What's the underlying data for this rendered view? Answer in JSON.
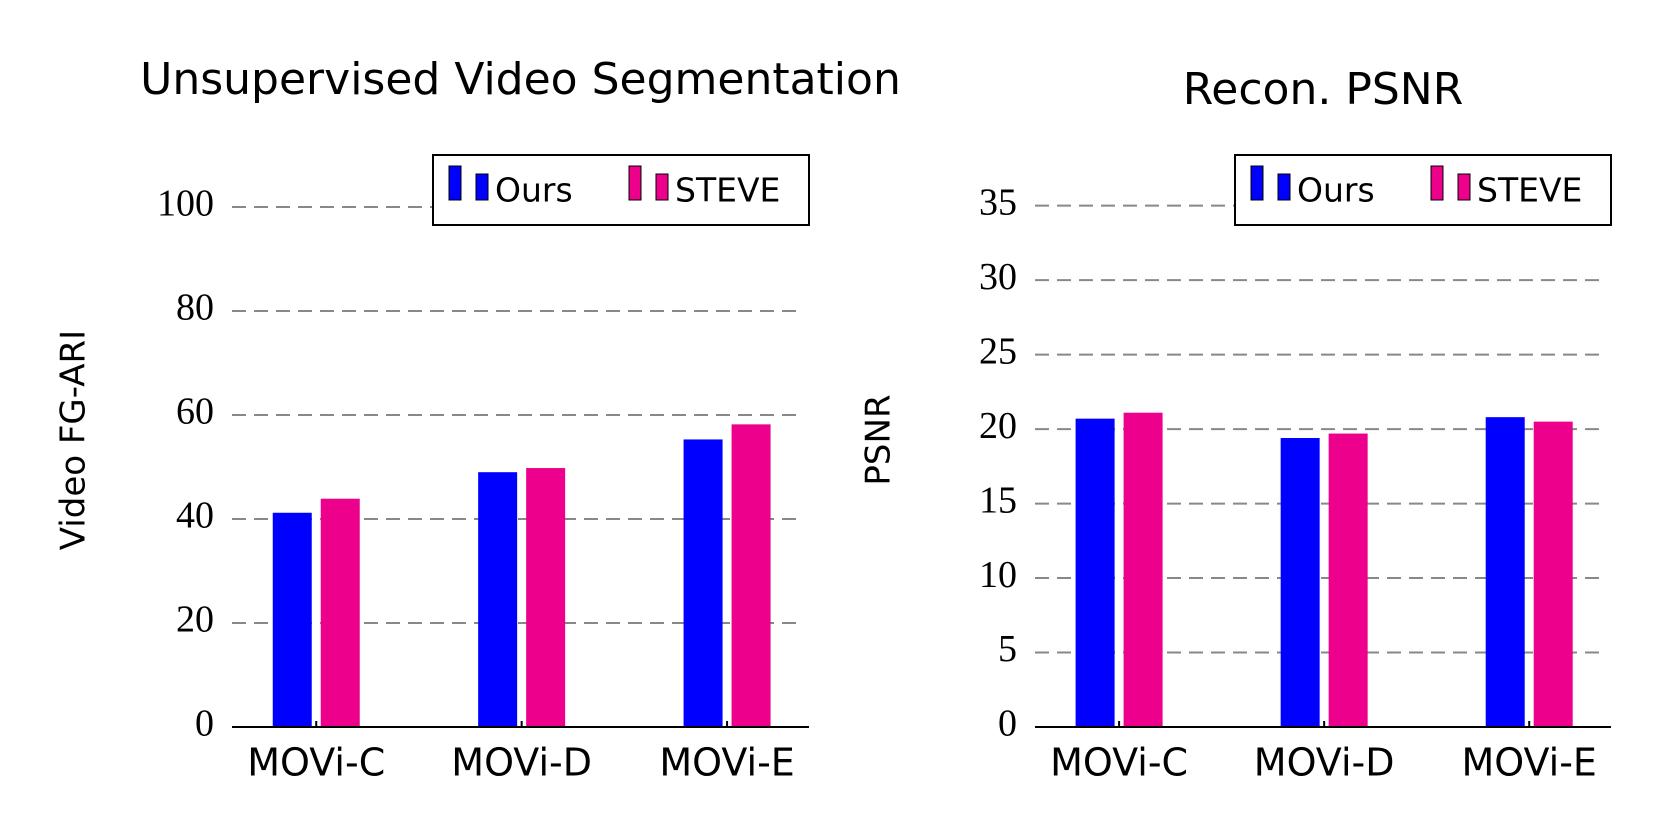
{
  "chart_data": [
    {
      "type": "bar",
      "title": "Unsupervised Video Segmentation",
      "y_label": "Video FG-ARI",
      "categories": [
        "MOVi-C",
        "MOVi-D",
        "MOVi-E"
      ],
      "series": [
        {
          "name": "Ours",
          "color": "#0000ff",
          "values": [
            41.2,
            49.0,
            55.3
          ]
        },
        {
          "name": "STEVE",
          "color": "#ec008c",
          "values": [
            43.9,
            49.8,
            58.2
          ]
        }
      ],
      "ylim": [
        0,
        110
      ],
      "yticks": [
        0,
        20,
        40,
        60,
        80,
        100
      ],
      "grid": true,
      "legend": "upper right"
    },
    {
      "type": "bar",
      "title": "Recon. PSNR",
      "y_label": "PSNR",
      "categories": [
        "MOVi-C",
        "MOVi-D",
        "MOVi-E"
      ],
      "series": [
        {
          "name": "Ours",
          "color": "#0000ff",
          "values": [
            20.7,
            19.4,
            20.8
          ]
        },
        {
          "name": "STEVE",
          "color": "#ec008c",
          "values": [
            21.1,
            19.7,
            20.5
          ]
        }
      ],
      "ylim": [
        0,
        38.4
      ],
      "yticks": [
        0,
        5,
        10,
        15,
        20,
        25,
        30,
        35
      ],
      "grid": true,
      "legend": "upper right"
    }
  ]
}
